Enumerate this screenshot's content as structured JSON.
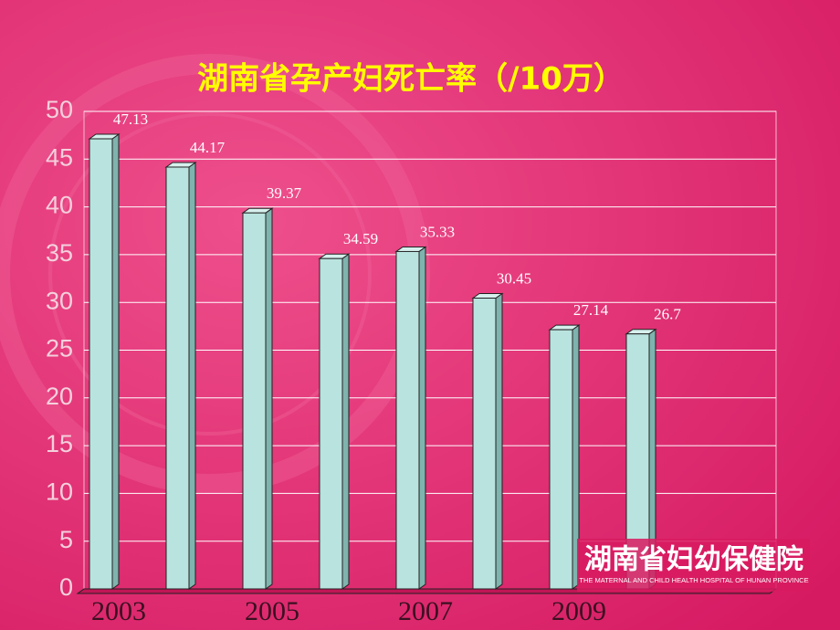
{
  "chart_data": {
    "type": "bar",
    "title": "湖南省孕产妇死亡率（/10万）",
    "categories": [
      "2003",
      null,
      "2005",
      null,
      "2007",
      null,
      "2009",
      null
    ],
    "values": [
      47.13,
      44.17,
      39.37,
      34.59,
      35.33,
      30.45,
      27.14,
      26.7
    ],
    "color": "#b9e3df",
    "ylim": [
      0,
      50
    ],
    "yticks": [
      0,
      5,
      10,
      15,
      20,
      25,
      30,
      35,
      40,
      45,
      50
    ],
    "grid": true
  },
  "logo": {
    "name": "湖南省妇幼保健院",
    "subtitle": "THE MATERNAL AND CHILD HEALTH HOSPITAL OF HUNAN PROVINCE"
  }
}
